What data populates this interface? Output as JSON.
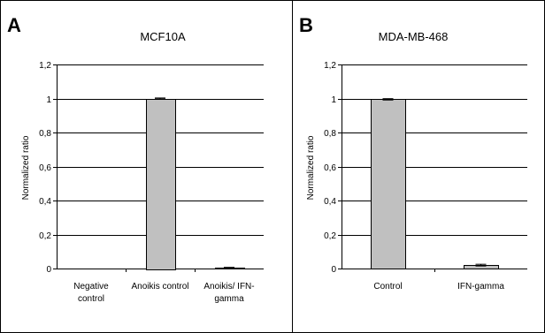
{
  "panels": [
    {
      "letter": "A"
    },
    {
      "letter": "B"
    }
  ],
  "chart_data": [
    {
      "type": "bar",
      "title": "MCF10A",
      "xlabel": "",
      "ylabel": "Normalized ratio",
      "ylim": [
        0,
        1.2
      ],
      "yticks": [
        "0",
        "0,2",
        "0,4",
        "0,6",
        "0,8",
        "1",
        "1,2"
      ],
      "grid": true,
      "bar_color": "#c0c0c0",
      "categories": [
        [
          "Negative",
          "control"
        ],
        [
          "Anoikis control"
        ],
        [
          "Anoikis/ IFN-",
          "gamma"
        ]
      ],
      "values": [
        0.0,
        1.0,
        0.005
      ],
      "errors": [
        0.0,
        0.003,
        0.002
      ]
    },
    {
      "type": "bar",
      "title": "MDA-MB-468",
      "xlabel": "",
      "ylabel": "Normalized ratio",
      "ylim": [
        0,
        1.2
      ],
      "yticks": [
        "0",
        "0,2",
        "0,4",
        "0,6",
        "0,8",
        "1",
        "1,2"
      ],
      "grid": true,
      "bar_color": "#c0c0c0",
      "categories": [
        [
          "Control"
        ],
        [
          "IFN-gamma"
        ]
      ],
      "values": [
        0.995,
        0.02
      ],
      "errors": [
        0.004,
        0.005
      ]
    }
  ]
}
